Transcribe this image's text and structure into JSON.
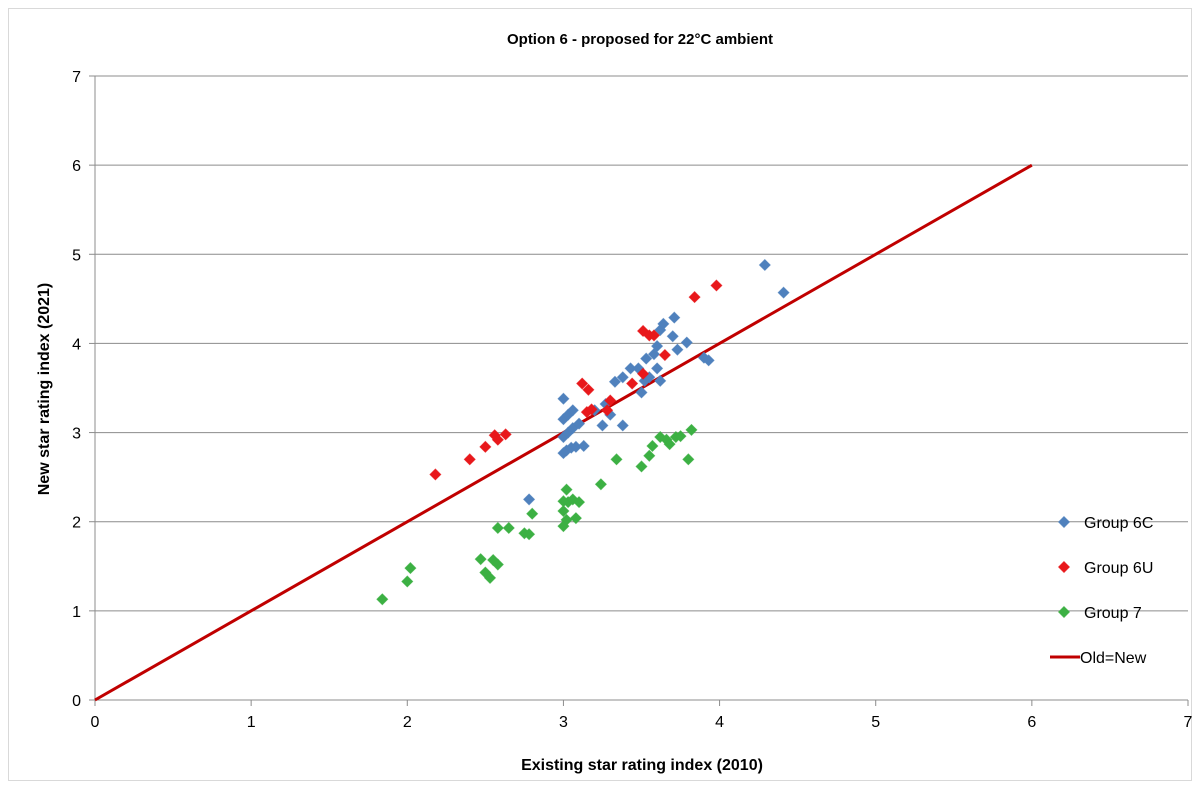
{
  "chart_data": {
    "type": "scatter",
    "title": "Option 6 - proposed for 22°C ambient",
    "xlabel": "Existing star rating index (2010)",
    "ylabel": "New star rating index (2021)",
    "xlim": [
      0,
      7
    ],
    "ylim": [
      0,
      7
    ],
    "x_ticks": [
      "0",
      "1",
      "2",
      "3",
      "4",
      "5",
      "6",
      "7"
    ],
    "y_ticks": [
      "0",
      "1",
      "2",
      "3",
      "4",
      "5",
      "6",
      "7"
    ],
    "grid": "horizontal major gridlines",
    "legend_position": "right",
    "series": [
      {
        "name": "Group 6C",
        "color": "#4F81BD",
        "marker": "diamond",
        "points": [
          [
            2.78,
            2.25
          ],
          [
            3.0,
            2.77
          ],
          [
            3.02,
            2.8
          ],
          [
            3.05,
            2.83
          ],
          [
            3.08,
            2.84
          ],
          [
            3.13,
            2.85
          ],
          [
            3.0,
            2.95
          ],
          [
            3.03,
            3.0
          ],
          [
            3.06,
            3.05
          ],
          [
            3.1,
            3.1
          ],
          [
            3.0,
            3.15
          ],
          [
            3.03,
            3.2
          ],
          [
            3.06,
            3.25
          ],
          [
            3.0,
            3.38
          ],
          [
            3.2,
            3.25
          ],
          [
            3.25,
            3.08
          ],
          [
            3.3,
            3.2
          ],
          [
            3.38,
            3.08
          ],
          [
            3.27,
            3.32
          ],
          [
            3.33,
            3.57
          ],
          [
            3.38,
            3.62
          ],
          [
            3.43,
            3.72
          ],
          [
            3.48,
            3.72
          ],
          [
            3.5,
            3.45
          ],
          [
            3.52,
            3.58
          ],
          [
            3.55,
            3.62
          ],
          [
            3.53,
            3.83
          ],
          [
            3.58,
            3.88
          ],
          [
            3.6,
            3.72
          ],
          [
            3.62,
            3.58
          ],
          [
            3.6,
            3.97
          ],
          [
            3.62,
            4.15
          ],
          [
            3.64,
            4.22
          ],
          [
            3.7,
            4.08
          ],
          [
            3.71,
            4.29
          ],
          [
            3.73,
            3.93
          ],
          [
            3.79,
            4.01
          ],
          [
            3.9,
            3.84
          ],
          [
            3.93,
            3.81
          ],
          [
            4.29,
            4.88
          ],
          [
            4.41,
            4.57
          ]
        ]
      },
      {
        "name": "Group 6U",
        "color": "#E8181B",
        "marker": "diamond",
        "points": [
          [
            2.18,
            2.53
          ],
          [
            2.4,
            2.7
          ],
          [
            2.5,
            2.84
          ],
          [
            2.56,
            2.97
          ],
          [
            2.58,
            2.92
          ],
          [
            2.63,
            2.98
          ],
          [
            3.12,
            3.55
          ],
          [
            3.16,
            3.48
          ],
          [
            3.15,
            3.23
          ],
          [
            3.18,
            3.26
          ],
          [
            3.28,
            3.25
          ],
          [
            3.3,
            3.36
          ],
          [
            3.44,
            3.55
          ],
          [
            3.51,
            3.66
          ],
          [
            3.51,
            4.14
          ],
          [
            3.55,
            4.09
          ],
          [
            3.58,
            4.09
          ],
          [
            3.65,
            3.87
          ],
          [
            3.84,
            4.52
          ],
          [
            3.98,
            4.65
          ]
        ]
      },
      {
        "name": "Group 7",
        "color": "#3CB043",
        "marker": "diamond",
        "points": [
          [
            1.84,
            1.13
          ],
          [
            2.0,
            1.33
          ],
          [
            2.02,
            1.48
          ],
          [
            2.47,
            1.58
          ],
          [
            2.5,
            1.43
          ],
          [
            2.53,
            1.37
          ],
          [
            2.55,
            1.57
          ],
          [
            2.58,
            1.52
          ],
          [
            2.58,
            1.93
          ],
          [
            2.65,
            1.93
          ],
          [
            2.75,
            1.87
          ],
          [
            2.78,
            1.86
          ],
          [
            2.8,
            2.09
          ],
          [
            3.0,
            1.95
          ],
          [
            3.02,
            2.02
          ],
          [
            3.0,
            2.12
          ],
          [
            3.03,
            2.22
          ],
          [
            3.0,
            2.23
          ],
          [
            3.02,
            2.36
          ],
          [
            3.06,
            2.25
          ],
          [
            3.08,
            2.04
          ],
          [
            3.1,
            2.22
          ],
          [
            3.24,
            2.42
          ],
          [
            3.34,
            2.7
          ],
          [
            3.5,
            2.62
          ],
          [
            3.55,
            2.74
          ],
          [
            3.57,
            2.85
          ],
          [
            3.62,
            2.95
          ],
          [
            3.66,
            2.92
          ],
          [
            3.68,
            2.87
          ],
          [
            3.72,
            2.95
          ],
          [
            3.75,
            2.96
          ],
          [
            3.8,
            2.7
          ],
          [
            3.82,
            3.03
          ]
        ]
      },
      {
        "name": "Old=New",
        "color": "#C00000",
        "marker": "line",
        "points": [
          [
            0,
            0
          ],
          [
            6,
            6
          ]
        ]
      }
    ]
  }
}
